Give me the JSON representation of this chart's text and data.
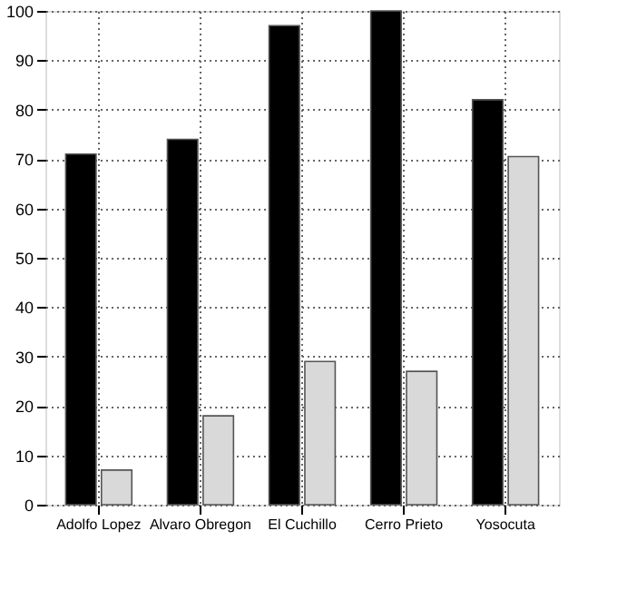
{
  "chart_data": {
    "type": "bar",
    "categories": [
      "Adolfo Lopez",
      "Alvaro Obregon",
      "El Cuchillo",
      "Cerro Prieto",
      "Yosocuta"
    ],
    "series": [
      {
        "color": "#000000",
        "values": [
          71,
          74,
          97,
          100,
          82
        ]
      },
      {
        "color": "#d9d9d9",
        "values": [
          7,
          18,
          29,
          27,
          70.5
        ]
      }
    ],
    "ylim": [
      0,
      100
    ],
    "yticks": [
      0,
      10,
      20,
      30,
      40,
      50,
      60,
      70,
      80,
      90,
      100
    ],
    "grid": true,
    "legend": false
  }
}
